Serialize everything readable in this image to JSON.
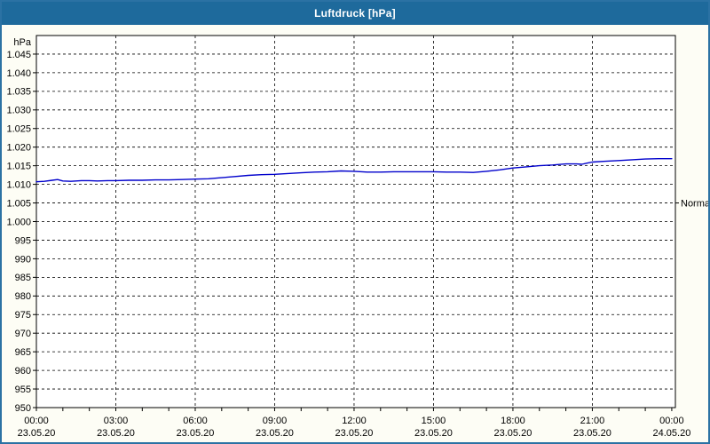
{
  "window": {
    "title": "Luftdruck [hPa]",
    "title_bar_color": "#1e6a9c",
    "border_color": "#2b72a4",
    "background_color": "#fdfdf5"
  },
  "chart_data": {
    "type": "line",
    "title": "Luftdruck [hPa]",
    "y_unit_label": "hPa",
    "y_min": 950,
    "y_max": 1050,
    "y_tick_step": 5,
    "y_first_labeled": 950,
    "y_last_labeled": 1045,
    "y_label_format": "german_thousands_dot",
    "grid": "dashed",
    "grid_color": "#000000",
    "plot_bg_color": "#ffffff",
    "line_color": "#0000cc",
    "x_axis_hours": [
      0,
      24
    ],
    "x_minor_tick_every_hours": 1,
    "x_ticks": [
      {
        "hour": 0,
        "time": "00:00",
        "date": "23.05.20"
      },
      {
        "hour": 3,
        "time": "03:00",
        "date": "23.05.20"
      },
      {
        "hour": 6,
        "time": "06:00",
        "date": "23.05.20"
      },
      {
        "hour": 9,
        "time": "09:00",
        "date": "23.05.20"
      },
      {
        "hour": 12,
        "time": "12:00",
        "date": "23.05.20"
      },
      {
        "hour": 15,
        "time": "15:00",
        "date": "23.05.20"
      },
      {
        "hour": 18,
        "time": "18:00",
        "date": "23.05.20"
      },
      {
        "hour": 21,
        "time": "21:00",
        "date": "23.05.20"
      },
      {
        "hour": 24,
        "time": "00:00",
        "date": "24.05.20"
      }
    ],
    "normal_marker": {
      "label": "Normal",
      "value": 1005
    },
    "legend_position": "right-margin",
    "series": [
      {
        "name": "Luftdruck",
        "color": "#0000cc",
        "points": [
          [
            0.0,
            1010.7
          ],
          [
            0.3,
            1010.8
          ],
          [
            0.6,
            1011.1
          ],
          [
            0.8,
            1011.3
          ],
          [
            1.0,
            1010.9
          ],
          [
            1.3,
            1010.8
          ],
          [
            1.7,
            1011.0
          ],
          [
            2.0,
            1011.0
          ],
          [
            2.3,
            1010.9
          ],
          [
            2.7,
            1011.0
          ],
          [
            3.0,
            1011.0
          ],
          [
            3.5,
            1011.1
          ],
          [
            4.0,
            1011.1
          ],
          [
            4.5,
            1011.2
          ],
          [
            5.0,
            1011.2
          ],
          [
            5.5,
            1011.3
          ],
          [
            6.0,
            1011.4
          ],
          [
            6.5,
            1011.5
          ],
          [
            7.0,
            1011.8
          ],
          [
            7.5,
            1012.1
          ],
          [
            8.0,
            1012.4
          ],
          [
            8.5,
            1012.6
          ],
          [
            9.0,
            1012.7
          ],
          [
            9.5,
            1012.9
          ],
          [
            10.0,
            1013.1
          ],
          [
            10.5,
            1013.3
          ],
          [
            11.0,
            1013.4
          ],
          [
            11.5,
            1013.6
          ],
          [
            12.0,
            1013.5
          ],
          [
            12.5,
            1013.3
          ],
          [
            13.0,
            1013.3
          ],
          [
            13.5,
            1013.4
          ],
          [
            14.0,
            1013.4
          ],
          [
            14.5,
            1013.4
          ],
          [
            15.0,
            1013.4
          ],
          [
            15.5,
            1013.3
          ],
          [
            16.0,
            1013.3
          ],
          [
            16.5,
            1013.2
          ],
          [
            17.0,
            1013.5
          ],
          [
            17.5,
            1013.9
          ],
          [
            18.0,
            1014.4
          ],
          [
            18.5,
            1014.7
          ],
          [
            19.0,
            1015.0
          ],
          [
            19.5,
            1015.2
          ],
          [
            20.0,
            1015.5
          ],
          [
            20.4,
            1015.5
          ],
          [
            20.6,
            1015.4
          ],
          [
            20.8,
            1015.7
          ],
          [
            21.0,
            1016.0
          ],
          [
            21.5,
            1016.2
          ],
          [
            22.0,
            1016.4
          ],
          [
            22.5,
            1016.6
          ],
          [
            23.0,
            1016.8
          ],
          [
            23.5,
            1016.9
          ],
          [
            24.0,
            1016.9
          ]
        ]
      }
    ]
  }
}
